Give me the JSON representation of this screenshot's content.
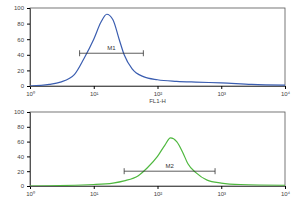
{
  "chart_data": [
    {
      "type": "line",
      "log": "x",
      "grid": false,
      "color": "#3a5db0",
      "x_label": "FL1-H",
      "x": [
        1,
        2,
        3,
        5,
        7,
        10,
        13,
        16,
        20,
        25,
        30,
        40,
        60,
        100,
        200,
        400,
        1000,
        3000,
        10000
      ],
      "series": [
        {
          "values": [
            0,
            2,
            5,
            15,
            35,
            60,
            82,
            92,
            85,
            60,
            40,
            22,
            12,
            8,
            6,
            5,
            4,
            2,
            1
          ]
        }
      ],
      "xlim": [
        1,
        10000
      ],
      "xticks": [
        {
          "value": 1,
          "label": "10⁰"
        },
        {
          "value": 10,
          "label": "10¹"
        },
        {
          "value": 100,
          "label": "10²"
        },
        {
          "value": 1000,
          "label": "10³"
        },
        {
          "value": 10000,
          "label": "10⁴"
        }
      ],
      "ylim": [
        0,
        100
      ],
      "yticks": [
        0,
        20,
        40,
        60,
        80,
        100
      ],
      "annotations": [
        {
          "text": "M1",
          "x": [
            6,
            60
          ],
          "y": 42
        }
      ]
    },
    {
      "type": "line",
      "log": "x",
      "grid": false,
      "color": "#4fb83f",
      "x": [
        1,
        10,
        20,
        30,
        50,
        70,
        100,
        130,
        160,
        200,
        250,
        300,
        400,
        600,
        1000,
        2000,
        10000
      ],
      "series": [
        {
          "values": [
            0,
            2,
            4,
            7,
            14,
            25,
            40,
            55,
            65,
            60,
            45,
            30,
            18,
            8,
            4,
            2,
            1
          ]
        }
      ],
      "xlim": [
        1,
        10000
      ],
      "xticks": [
        {
          "value": 1,
          "label": "10⁰"
        },
        {
          "value": 10,
          "label": "10¹"
        },
        {
          "value": 100,
          "label": "10²"
        },
        {
          "value": 1000,
          "label": "10³"
        },
        {
          "value": 10000,
          "label": "10⁴"
        }
      ],
      "ylim": [
        0,
        100
      ],
      "yticks": [
        0,
        20,
        40,
        60,
        80,
        100
      ],
      "annotations": [
        {
          "text": "M2",
          "x": [
            30,
            800
          ],
          "y": 20
        }
      ]
    }
  ]
}
